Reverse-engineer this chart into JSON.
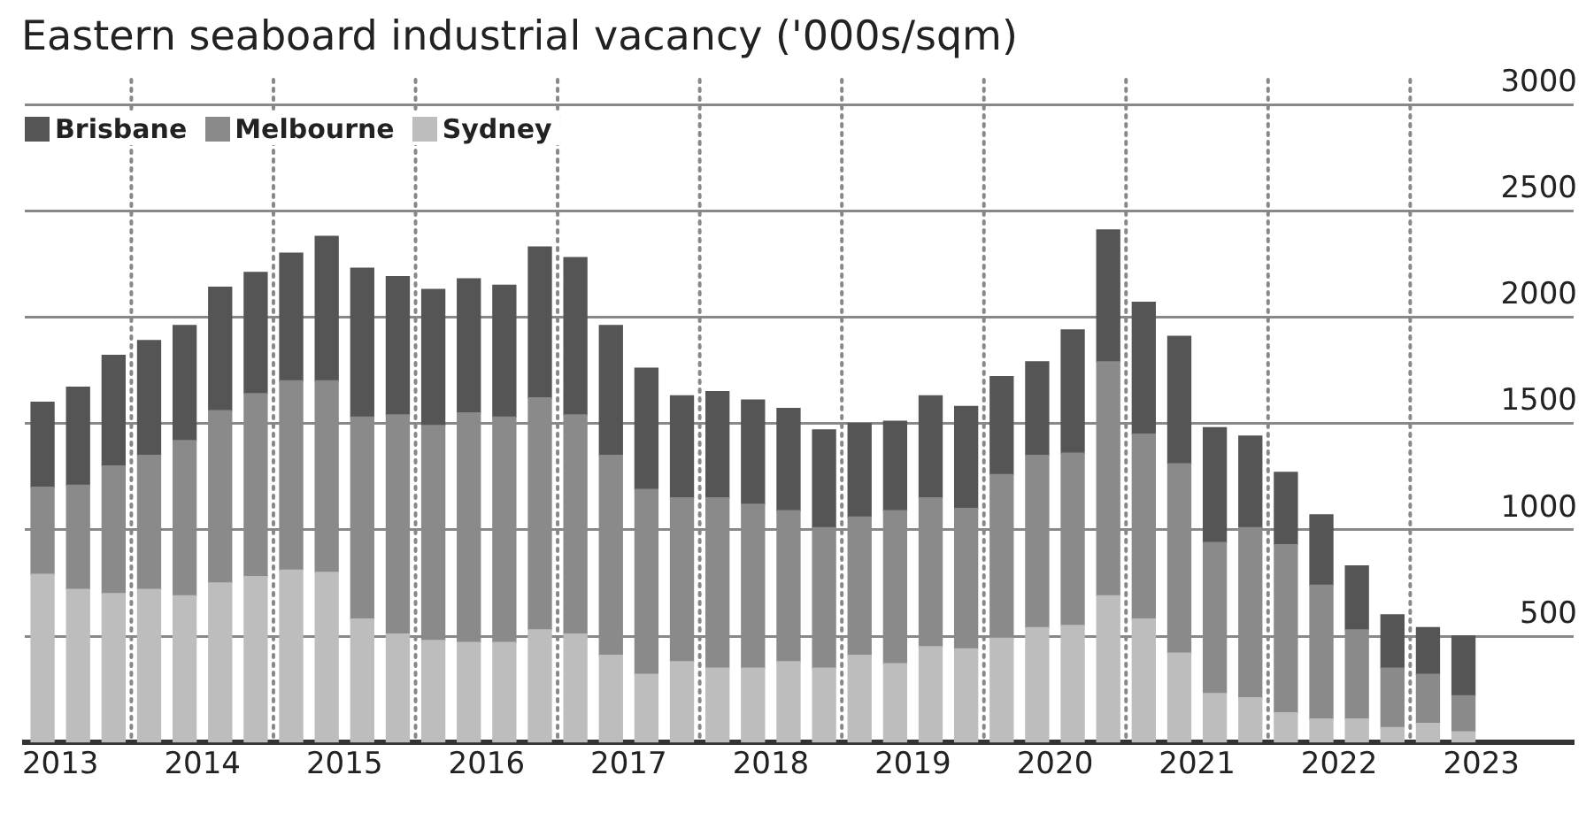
{
  "chart_data": {
    "type": "bar",
    "title": "Eastern seaboard industrial vacancy ('000s/sqm)",
    "stacked": true,
    "grid": "y",
    "legend": "top left",
    "x": [
      2012.875,
      2013.125,
      2013.375,
      2013.625,
      2013.875,
      2014.125,
      2014.375,
      2014.625,
      2014.875,
      2015.125,
      2015.375,
      2015.625,
      2015.875,
      2016.125,
      2016.375,
      2016.625,
      2016.875,
      2017.125,
      2017.375,
      2017.625,
      2017.875,
      2018.125,
      2018.375,
      2018.625,
      2018.875,
      2019.125,
      2019.375,
      2019.625,
      2019.875,
      2020.125,
      2020.375,
      2020.625,
      2020.875,
      2021.125,
      2021.375,
      2021.625,
      2021.875,
      2022.125,
      2022.375,
      2022.625,
      2022.875
    ],
    "xlim": [
      2012.75,
      2023.65
    ],
    "xticks": [
      2013,
      2014,
      2015,
      2016,
      2017,
      2018,
      2019,
      2020,
      2021,
      2022,
      2023
    ],
    "ylim": [
      0,
      3000
    ],
    "yticks": [
      500,
      1000,
      1500,
      2000,
      2500,
      3000
    ],
    "ref_lines": [
      {
        "axis": "x",
        "value": 2013.5,
        "color": "#888888",
        "line_style": "dotted"
      },
      {
        "axis": "x",
        "value": 2014.5,
        "color": "#888888",
        "line_style": "dotted"
      },
      {
        "axis": "x",
        "value": 2015.5,
        "color": "#888888",
        "line_style": "dotted"
      },
      {
        "axis": "x",
        "value": 2016.5,
        "color": "#888888",
        "line_style": "dotted"
      },
      {
        "axis": "x",
        "value": 2017.5,
        "color": "#888888",
        "line_style": "dotted"
      },
      {
        "axis": "x",
        "value": 2018.5,
        "color": "#888888",
        "line_style": "dotted"
      },
      {
        "axis": "x",
        "value": 2019.5,
        "color": "#888888",
        "line_style": "dotted"
      },
      {
        "axis": "x",
        "value": 2020.5,
        "color": "#888888",
        "line_style": "dotted"
      },
      {
        "axis": "x",
        "value": 2021.5,
        "color": "#888888",
        "line_style": "dotted"
      },
      {
        "axis": "x",
        "value": 2022.5,
        "color": "#888888",
        "line_style": "dotted"
      }
    ],
    "series": [
      {
        "name": "Sydney",
        "color": "#bdbdbd",
        "values": [
          790,
          720,
          700,
          720,
          690,
          750,
          780,
          810,
          800,
          580,
          510,
          480,
          470,
          470,
          530,
          510,
          410,
          320,
          380,
          350,
          350,
          380,
          350,
          410,
          370,
          450,
          440,
          490,
          540,
          550,
          690,
          580,
          420,
          230,
          210,
          140,
          110,
          110,
          70,
          90,
          50
        ]
      },
      {
        "name": "Melbourne",
        "color": "#8a8a8a",
        "values": [
          410,
          490,
          600,
          630,
          730,
          810,
          860,
          890,
          900,
          950,
          1030,
          1010,
          1080,
          1060,
          1090,
          1030,
          940,
          870,
          770,
          800,
          770,
          710,
          660,
          650,
          720,
          700,
          660,
          770,
          810,
          810,
          1100,
          870,
          890,
          710,
          800,
          790,
          630,
          420,
          280,
          230,
          170
        ]
      },
      {
        "name": "Brisbane",
        "color": "#555555",
        "values": [
          400,
          460,
          520,
          540,
          540,
          580,
          570,
          600,
          680,
          700,
          650,
          640,
          630,
          620,
          710,
          740,
          610,
          570,
          480,
          500,
          490,
          480,
          460,
          440,
          420,
          480,
          480,
          460,
          440,
          580,
          620,
          620,
          600,
          540,
          430,
          340,
          330,
          300,
          250,
          220,
          280
        ]
      }
    ]
  }
}
